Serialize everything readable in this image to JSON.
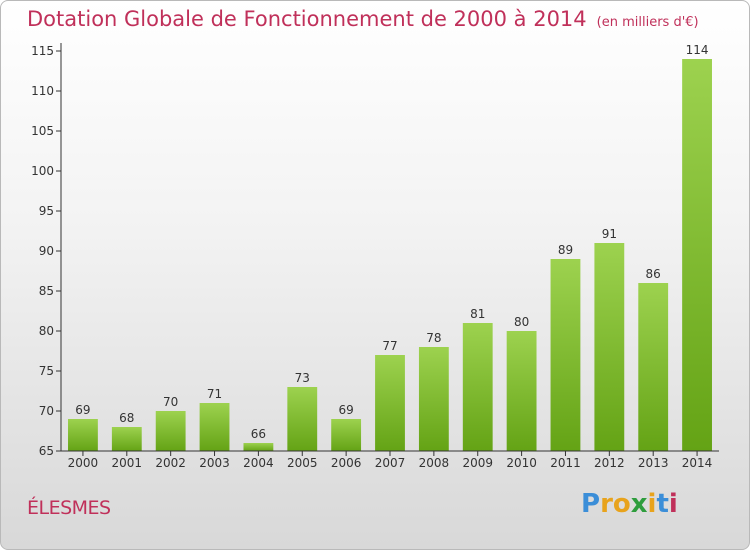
{
  "title": "Dotation Globale de Fonctionnement de 2000 à 2014",
  "subtitle": "(en milliers d'€)",
  "commune": "ÉLESMES",
  "logo": {
    "letters": [
      "P",
      "r",
      "o",
      "x",
      "i",
      "t",
      "i"
    ],
    "colors": [
      "#3b8ed8",
      "#e8a31c",
      "#e8a31c",
      "#2e9d3d",
      "#e8a31c",
      "#3b8ed8",
      "#c0305a"
    ]
  },
  "colors": {
    "accent": "#c0305a",
    "bar_light": "#9dd24f",
    "bar_dark": "#64a315"
  },
  "chart_data": {
    "type": "bar",
    "categories": [
      "2000",
      "2001",
      "2002",
      "2003",
      "2004",
      "2005",
      "2006",
      "2007",
      "2008",
      "2009",
      "2010",
      "2011",
      "2012",
      "2013",
      "2014"
    ],
    "values": [
      69,
      68,
      70,
      71,
      66,
      73,
      69,
      77,
      78,
      81,
      80,
      89,
      91,
      86,
      114
    ],
    "yticks": [
      65,
      70,
      75,
      80,
      85,
      90,
      95,
      100,
      105,
      110,
      115
    ],
    "ylim": [
      65,
      115
    ],
    "grid": false,
    "xlabel": "",
    "ylabel": ""
  }
}
